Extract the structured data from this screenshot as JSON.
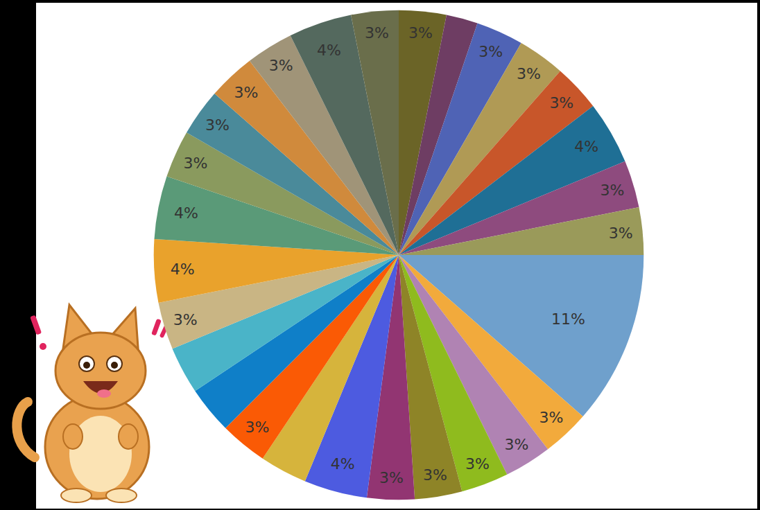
{
  "chart_data": {
    "type": "pie",
    "values": [
      3,
      2,
      3,
      3,
      3,
      4,
      3,
      3,
      11,
      3,
      3,
      3,
      3,
      3,
      4,
      3,
      3,
      3,
      3,
      3,
      4,
      4,
      3,
      3,
      3,
      3,
      4,
      3
    ],
    "value_labels": [
      "3%",
      null,
      "3%",
      "3%",
      "3%",
      "4%",
      "3%",
      "3%",
      "11%",
      "3%",
      "3%",
      "3%",
      "3%",
      "3%",
      "4%",
      null,
      "3%",
      null,
      null,
      "3%",
      "4%",
      "4%",
      "3%",
      "3%",
      "3%",
      "3%",
      "4%",
      "3%"
    ],
    "colors": [
      "#6b6427",
      "#6e3d63",
      "#4f63b5",
      "#b09a55",
      "#c8562a",
      "#1f6f95",
      "#8e4b7e",
      "#9a9a5a",
      "#6fa0cc",
      "#f2aa3c",
      "#b083b3",
      "#8fbb1e",
      "#8e8427",
      "#923572",
      "#4d5be0",
      "#d6b43c",
      "#fa5a05",
      "#0f7fc8",
      "#4ab4c8",
      "#c9b584",
      "#e9a22c",
      "#5a9a78",
      "#8a9a5e",
      "#4a8a9a",
      "#d08a3c",
      "#a09478",
      "#54695e",
      "#6a6e4b"
    ],
    "data_labels": true
  }
}
